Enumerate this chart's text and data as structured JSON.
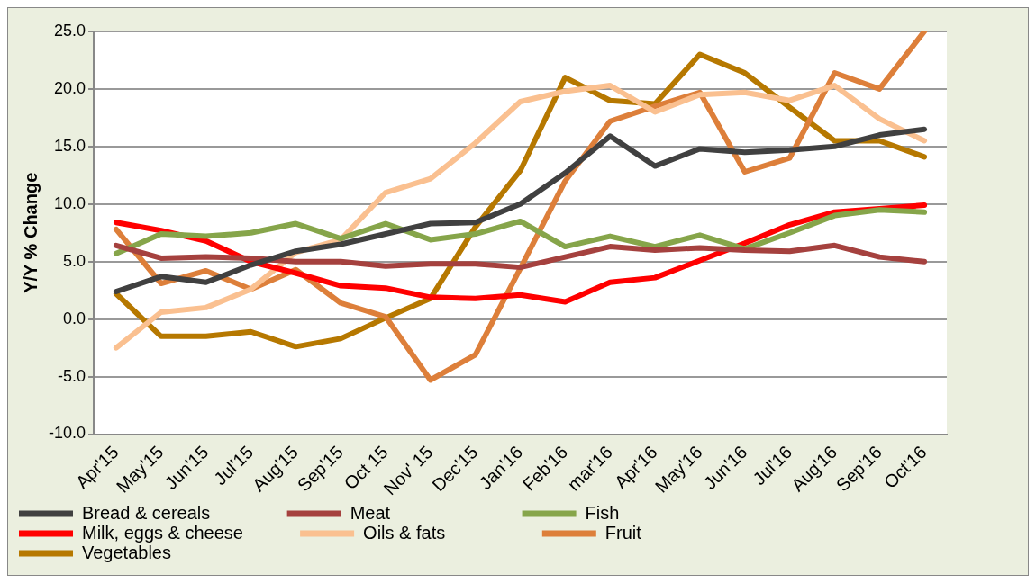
{
  "chart_data": {
    "type": "line",
    "categories": [
      "Apr'15",
      "May'15",
      "Jun'15",
      "Jul'15",
      "Aug'15",
      "Sep'15",
      "Oct 15",
      "Nov' 15",
      "Dec'15",
      "Jan'16",
      "Feb'16",
      "mar'16",
      "Apr'16",
      "May'16",
      "Jun'16",
      "Jul'16",
      "Aug'16",
      "Sep'16",
      "Oct'16"
    ],
    "ylabel": "Y/Y % Change",
    "ylim": [
      -10,
      25
    ],
    "yticks": [
      {
        "value": -10,
        "label": "-10.0"
      },
      {
        "value": -5,
        "label": "-5.0"
      },
      {
        "value": 0,
        "label": "0.0"
      },
      {
        "value": 5,
        "label": "5.0"
      },
      {
        "value": 10,
        "label": "10.0"
      },
      {
        "value": 15,
        "label": "15.0"
      },
      {
        "value": 20,
        "label": "20.0"
      },
      {
        "value": 25,
        "label": "25.0"
      }
    ],
    "grid": "y",
    "legend": "bottom",
    "marker": "none",
    "line_style": "solid",
    "series": [
      {
        "name": "Bread & cereals",
        "color": "#404040",
        "values": [
          2.4,
          3.7,
          3.2,
          4.7,
          5.9,
          6.5,
          7.4,
          8.3,
          8.4,
          10,
          12.7,
          15.9,
          13.3,
          14.8,
          14.5,
          14.7,
          15,
          16,
          16.5
        ]
      },
      {
        "name": "Meat",
        "color": "#a5413e",
        "values": [
          6.4,
          5.3,
          5.4,
          5.3,
          5.0,
          5.0,
          4.6,
          4.8,
          4.8,
          4.5,
          5.4,
          6.3,
          6.0,
          6.2,
          6.0,
          5.9,
          6.4,
          5.4,
          5.0
        ]
      },
      {
        "name": "Fish",
        "color": "#86a54a",
        "values": [
          5.7,
          7.4,
          7.2,
          7.5,
          8.3,
          7.0,
          8.3,
          6.9,
          7.4,
          8.5,
          6.3,
          7.2,
          6.3,
          7.3,
          6.1,
          7.5,
          9.0,
          9.5,
          9.3
        ]
      },
      {
        "name": "Milk, eggs & cheese",
        "color": "#ff0000",
        "values": [
          8.4,
          7.7,
          6.8,
          5.0,
          4.0,
          2.9,
          2.7,
          1.9,
          1.8,
          2.1,
          1.5,
          3.2,
          3.6,
          5.1,
          6.6,
          8.2,
          9.3,
          9.6,
          9.9
        ]
      },
      {
        "name": "Oils & fats",
        "color": "#fac090",
        "values": [
          -2.5,
          0.6,
          1.0,
          2.6,
          5.8,
          6.9,
          11.0,
          12.2,
          15.3,
          18.9,
          19.8,
          20.3,
          18.0,
          19.5,
          19.7,
          19.0,
          20.3,
          17.4,
          15.5
        ]
      },
      {
        "name": "Fruit",
        "color": "#dd7f3a",
        "values": [
          7.8,
          3.1,
          4.2,
          2.6,
          4.3,
          1.4,
          0.2,
          -5.3,
          -3.1,
          4.4,
          12.0,
          17.2,
          18.5,
          19.7,
          12.8,
          14.0,
          21.4,
          20.0,
          25.0
        ]
      },
      {
        "name": "Vegetables",
        "color": "#b67800",
        "values": [
          2.2,
          -1.5,
          -1.5,
          -1.1,
          -2.4,
          -1.7,
          0.1,
          1.8,
          8.0,
          12.9,
          21.0,
          19.0,
          18.7,
          23.0,
          21.4,
          18.4,
          15.5,
          15.5,
          14.1
        ]
      }
    ]
  }
}
